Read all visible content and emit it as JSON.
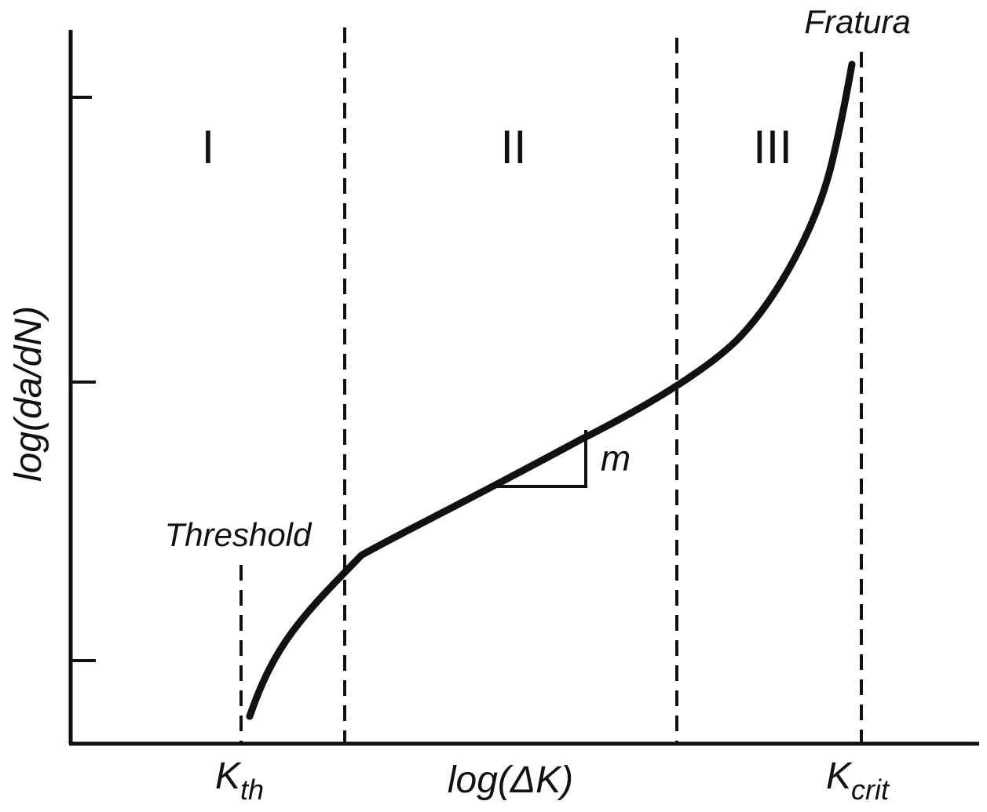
{
  "chart_data": {
    "type": "line",
    "title": "",
    "xlabel": "log(ΔK)",
    "ylabel": "log(da/dN)",
    "x_tick_labels": [
      {
        "base": "K",
        "sub": "th"
      },
      {
        "base": "K",
        "sub": "crit"
      }
    ],
    "regions": [
      "I",
      "II",
      "III"
    ],
    "annotations": {
      "threshold": "Threshold",
      "fracture": "Fratura",
      "slope": "m"
    },
    "y_ticks_count": 3,
    "curve_shape": "sigmoidal",
    "line_color": "#111111",
    "grid": false
  }
}
